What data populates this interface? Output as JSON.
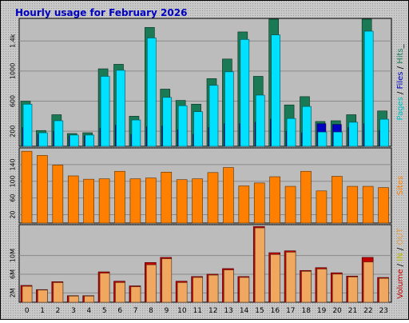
{
  "chart_data": {
    "type": "bar",
    "title": "Hourly usage for February 2026",
    "categories": [
      "0",
      "1",
      "2",
      "3",
      "4",
      "5",
      "6",
      "7",
      "8",
      "9",
      "10",
      "11",
      "12",
      "13",
      "14",
      "15",
      "16",
      "17",
      "18",
      "19",
      "20",
      "21",
      "22",
      "23"
    ],
    "panels": [
      {
        "id": "hits",
        "axis_label_parts": [
          {
            "text": "Pages",
            "color": "#00c0c0"
          },
          {
            "text": " / ",
            "color": "#000000"
          },
          {
            "text": "Files",
            "color": "#0000c0"
          },
          {
            "text": " / ",
            "color": "#000000"
          },
          {
            "text": "Hits",
            "color": "#1a7a55"
          },
          {
            "text": "_",
            "color": "#000000"
          }
        ],
        "ticks": [
          200,
          600,
          1000,
          1400
        ],
        "tick_labels": [
          "200",
          "600",
          "1000",
          "1.4k"
        ],
        "ylim": [
          0,
          1700
        ],
        "series": [
          {
            "key": "hits",
            "color": "#1a7a55",
            "values": [
              600,
              210,
              420,
              170,
              180,
              1030,
              1090,
              400,
              1580,
              760,
              610,
              560,
              900,
              1160,
              1520,
              930,
              1690,
              550,
              660,
              330,
              340,
              420,
              1690,
              470
            ]
          },
          {
            "key": "files",
            "color": "#0000c0",
            "values": [
              250,
              160,
              200,
              140,
              140,
              240,
              280,
              160,
              260,
              270,
              220,
              160,
              250,
              300,
              300,
              320,
              360,
              200,
              180,
              300,
              290,
              250,
              300,
              210
            ]
          },
          {
            "key": "pages",
            "color": "#00e0ff",
            "values": [
              560,
              180,
              340,
              150,
              150,
              930,
              1010,
              350,
              1440,
              650,
              540,
              460,
              810,
              990,
              1420,
              680,
              1480,
              370,
              530,
              190,
              190,
              320,
              1530,
              360
            ]
          }
        ]
      },
      {
        "id": "sites",
        "axis_label_parts": [
          {
            "text": "Sites",
            "color": "#ff8000"
          }
        ],
        "ticks": [
          20,
          60,
          100,
          140
        ],
        "tick_labels": [
          "20",
          "60",
          "100",
          "140"
        ],
        "ylim": [
          0,
          180
        ],
        "series": [
          {
            "key": "sites",
            "color": "#ff8000",
            "values": [
              172,
              162,
              139,
              113,
              105,
              106,
              124,
              106,
              108,
              122,
              104,
              106,
              121,
              133,
              89,
              96,
              111,
              88,
              124,
              77,
              112,
              88,
              88,
              85
            ]
          }
        ]
      },
      {
        "id": "volume",
        "axis_label_parts": [
          {
            "text": "Volume",
            "color": "#c00000"
          },
          {
            "text": " / ",
            "color": "#000000"
          },
          {
            "text": "IN",
            "color": "#b8b800"
          },
          {
            "text": " / ",
            "color": "#000000"
          },
          {
            "text": "OUT",
            "color": "#e0a050"
          },
          {
            "text": "  ",
            "color": "#000000"
          }
        ],
        "ticks": [
          2,
          6,
          10
        ],
        "tick_labels": [
          "2M",
          "6M",
          "10M"
        ],
        "ylim": [
          0,
          16.6
        ],
        "series": [
          {
            "key": "volume",
            "color": "#c00000",
            "values": [
              3.6,
              2.7,
              4.4,
              1.4,
              1.4,
              6.5,
              4.5,
              3.5,
              8.5,
              9.6,
              4.5,
              5.5,
              6.0,
              7.2,
              5.5,
              16.2,
              10.6,
              11.0,
              6.8,
              7.4,
              6.3,
              5.6,
              9.6,
              5.3
            ]
          },
          {
            "key": "out",
            "color": "#f0a860",
            "values": [
              3.4,
              2.6,
              4.2,
              1.3,
              1.3,
              6.2,
              4.2,
              3.3,
              8.0,
              9.3,
              4.2,
              5.3,
              5.8,
              6.9,
              5.3,
              15.9,
              10.2,
              10.7,
              6.6,
              7.1,
              6.0,
              5.4,
              8.6,
              5.1
            ]
          }
        ]
      }
    ]
  }
}
